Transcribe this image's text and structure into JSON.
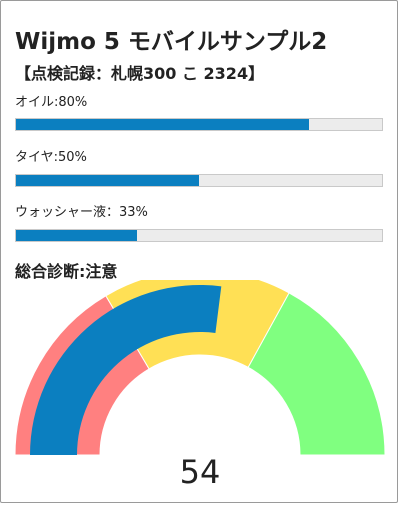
{
  "app": {
    "title": "Wijmo 5 モバイルサンプル2",
    "record": "【点検記録：札幌300 こ 2324】"
  },
  "meters": [
    {
      "label": "オイル:80%",
      "value": 0.8
    },
    {
      "label": "タイヤ:50%",
      "value": 0.5
    },
    {
      "label": "ウォッシャー液：33%",
      "value": 0.33
    }
  ],
  "diagnosis": {
    "label": "総合診断:注意"
  },
  "gauge": {
    "value_text": "54",
    "value": 54,
    "min": 0,
    "max": 100,
    "ranges": [
      {
        "from": 0,
        "to": 33,
        "color": "#ff8080"
      },
      {
        "from": 33,
        "to": 66,
        "color": "#ffe055"
      },
      {
        "from": 66,
        "to": 100,
        "color": "#80ff80"
      }
    ]
  },
  "colors": {
    "accent": "#0b7fc0",
    "track": "#ececec"
  }
}
